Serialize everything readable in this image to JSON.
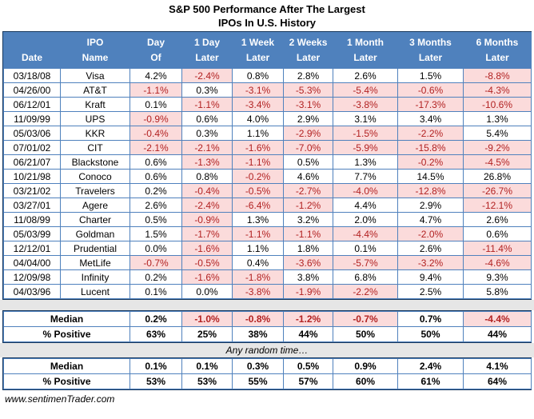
{
  "chart_data": {
    "type": "table",
    "title": "S&P 500 Performance After The Largest IPOs In U.S. History",
    "title_lines": [
      "S&P 500 Performance After The Largest",
      "IPOs In U.S. History"
    ],
    "columns": [
      {
        "l1": "",
        "l2": "Date"
      },
      {
        "l1": "IPO",
        "l2": "Name"
      },
      {
        "l1": "Day",
        "l2": "Of"
      },
      {
        "l1": "1 Day",
        "l2": "Later"
      },
      {
        "l1": "1 Week",
        "l2": "Later"
      },
      {
        "l1": "2 Weeks",
        "l2": "Later"
      },
      {
        "l1": "1 Month",
        "l2": "Later"
      },
      {
        "l1": "3 Months",
        "l2": "Later"
      },
      {
        "l1": "6 Months",
        "l2": "Later"
      }
    ],
    "rows": [
      {
        "date": "03/18/08",
        "name": "Visa",
        "values": [
          "4.2%",
          "-2.4%",
          "0.8%",
          "2.8%",
          "2.6%",
          "1.5%",
          "-8.8%"
        ]
      },
      {
        "date": "04/26/00",
        "name": "AT&T",
        "values": [
          "-1.1%",
          "0.3%",
          "-3.1%",
          "-5.3%",
          "-5.4%",
          "-0.6%",
          "-4.3%"
        ]
      },
      {
        "date": "06/12/01",
        "name": "Kraft",
        "values": [
          "0.1%",
          "-1.1%",
          "-3.4%",
          "-3.1%",
          "-3.8%",
          "-17.3%",
          "-10.6%"
        ]
      },
      {
        "date": "11/09/99",
        "name": "UPS",
        "values": [
          "-0.9%",
          "0.6%",
          "4.0%",
          "2.9%",
          "3.1%",
          "3.4%",
          "1.3%"
        ]
      },
      {
        "date": "05/03/06",
        "name": "KKR",
        "values": [
          "-0.4%",
          "0.3%",
          "1.1%",
          "-2.9%",
          "-1.5%",
          "-2.2%",
          "5.4%"
        ]
      },
      {
        "date": "07/01/02",
        "name": "CIT",
        "values": [
          "-2.1%",
          "-2.1%",
          "-1.6%",
          "-7.0%",
          "-5.9%",
          "-15.8%",
          "-9.2%"
        ]
      },
      {
        "date": "06/21/07",
        "name": "Blackstone",
        "values": [
          "0.6%",
          "-1.3%",
          "-1.1%",
          "0.5%",
          "1.3%",
          "-0.2%",
          "-4.5%"
        ]
      },
      {
        "date": "10/21/98",
        "name": "Conoco",
        "values": [
          "0.6%",
          "0.8%",
          "-0.2%",
          "4.6%",
          "7.7%",
          "14.5%",
          "26.8%"
        ]
      },
      {
        "date": "03/21/02",
        "name": "Travelers",
        "values": [
          "0.2%",
          "-0.4%",
          "-0.5%",
          "-2.7%",
          "-4.0%",
          "-12.8%",
          "-26.7%"
        ]
      },
      {
        "date": "03/27/01",
        "name": "Agere",
        "values": [
          "2.6%",
          "-2.4%",
          "-6.4%",
          "-1.2%",
          "4.4%",
          "2.9%",
          "-12.1%"
        ]
      },
      {
        "date": "11/08/99",
        "name": "Charter",
        "values": [
          "0.5%",
          "-0.9%",
          "1.3%",
          "3.2%",
          "2.0%",
          "4.7%",
          "2.6%"
        ]
      },
      {
        "date": "05/03/99",
        "name": "Goldman",
        "values": [
          "1.5%",
          "-1.7%",
          "-1.1%",
          "-1.1%",
          "-4.4%",
          "-2.0%",
          "0.6%"
        ]
      },
      {
        "date": "12/12/01",
        "name": "Prudential",
        "values": [
          "0.0%",
          "-1.6%",
          "1.1%",
          "1.8%",
          "0.1%",
          "2.6%",
          "-11.4%"
        ]
      },
      {
        "date": "04/04/00",
        "name": "MetLife",
        "values": [
          "-0.7%",
          "-0.5%",
          "0.4%",
          "-3.6%",
          "-5.7%",
          "-3.2%",
          "-4.6%"
        ]
      },
      {
        "date": "12/09/98",
        "name": "Infinity",
        "values": [
          "0.2%",
          "-1.6%",
          "-1.8%",
          "3.8%",
          "6.8%",
          "9.4%",
          "9.3%"
        ]
      },
      {
        "date": "04/03/96",
        "name": "Lucent",
        "values": [
          "0.1%",
          "0.0%",
          "-3.8%",
          "-1.9%",
          "-2.2%",
          "2.5%",
          "5.8%"
        ]
      }
    ],
    "summary_after_ipos": {
      "rows": [
        {
          "label": "Median",
          "values": [
            "0.2%",
            "-1.0%",
            "-0.8%",
            "-1.2%",
            "-0.7%",
            "0.7%",
            "-4.4%"
          ]
        },
        {
          "label": "% Positive",
          "values": [
            "63%",
            "25%",
            "38%",
            "44%",
            "50%",
            "50%",
            "44%"
          ]
        }
      ]
    },
    "divider_label": "Any random time…",
    "summary_any_random_time": {
      "rows": [
        {
          "label": "Median",
          "values": [
            "0.1%",
            "0.1%",
            "0.3%",
            "0.5%",
            "0.9%",
            "2.4%",
            "4.1%"
          ]
        },
        {
          "label": "% Positive",
          "values": [
            "53%",
            "53%",
            "55%",
            "57%",
            "60%",
            "61%",
            "64%"
          ]
        }
      ]
    },
    "footer": "www.sentimenTrader.com",
    "colors": {
      "header_bg": "#4F81BD",
      "grid": "#4F81BD",
      "outer_border": "#17375D",
      "negative_bg": "#FBDBDB",
      "negative_text": "#B22222",
      "band_bg": "#E6E6E6"
    }
  }
}
